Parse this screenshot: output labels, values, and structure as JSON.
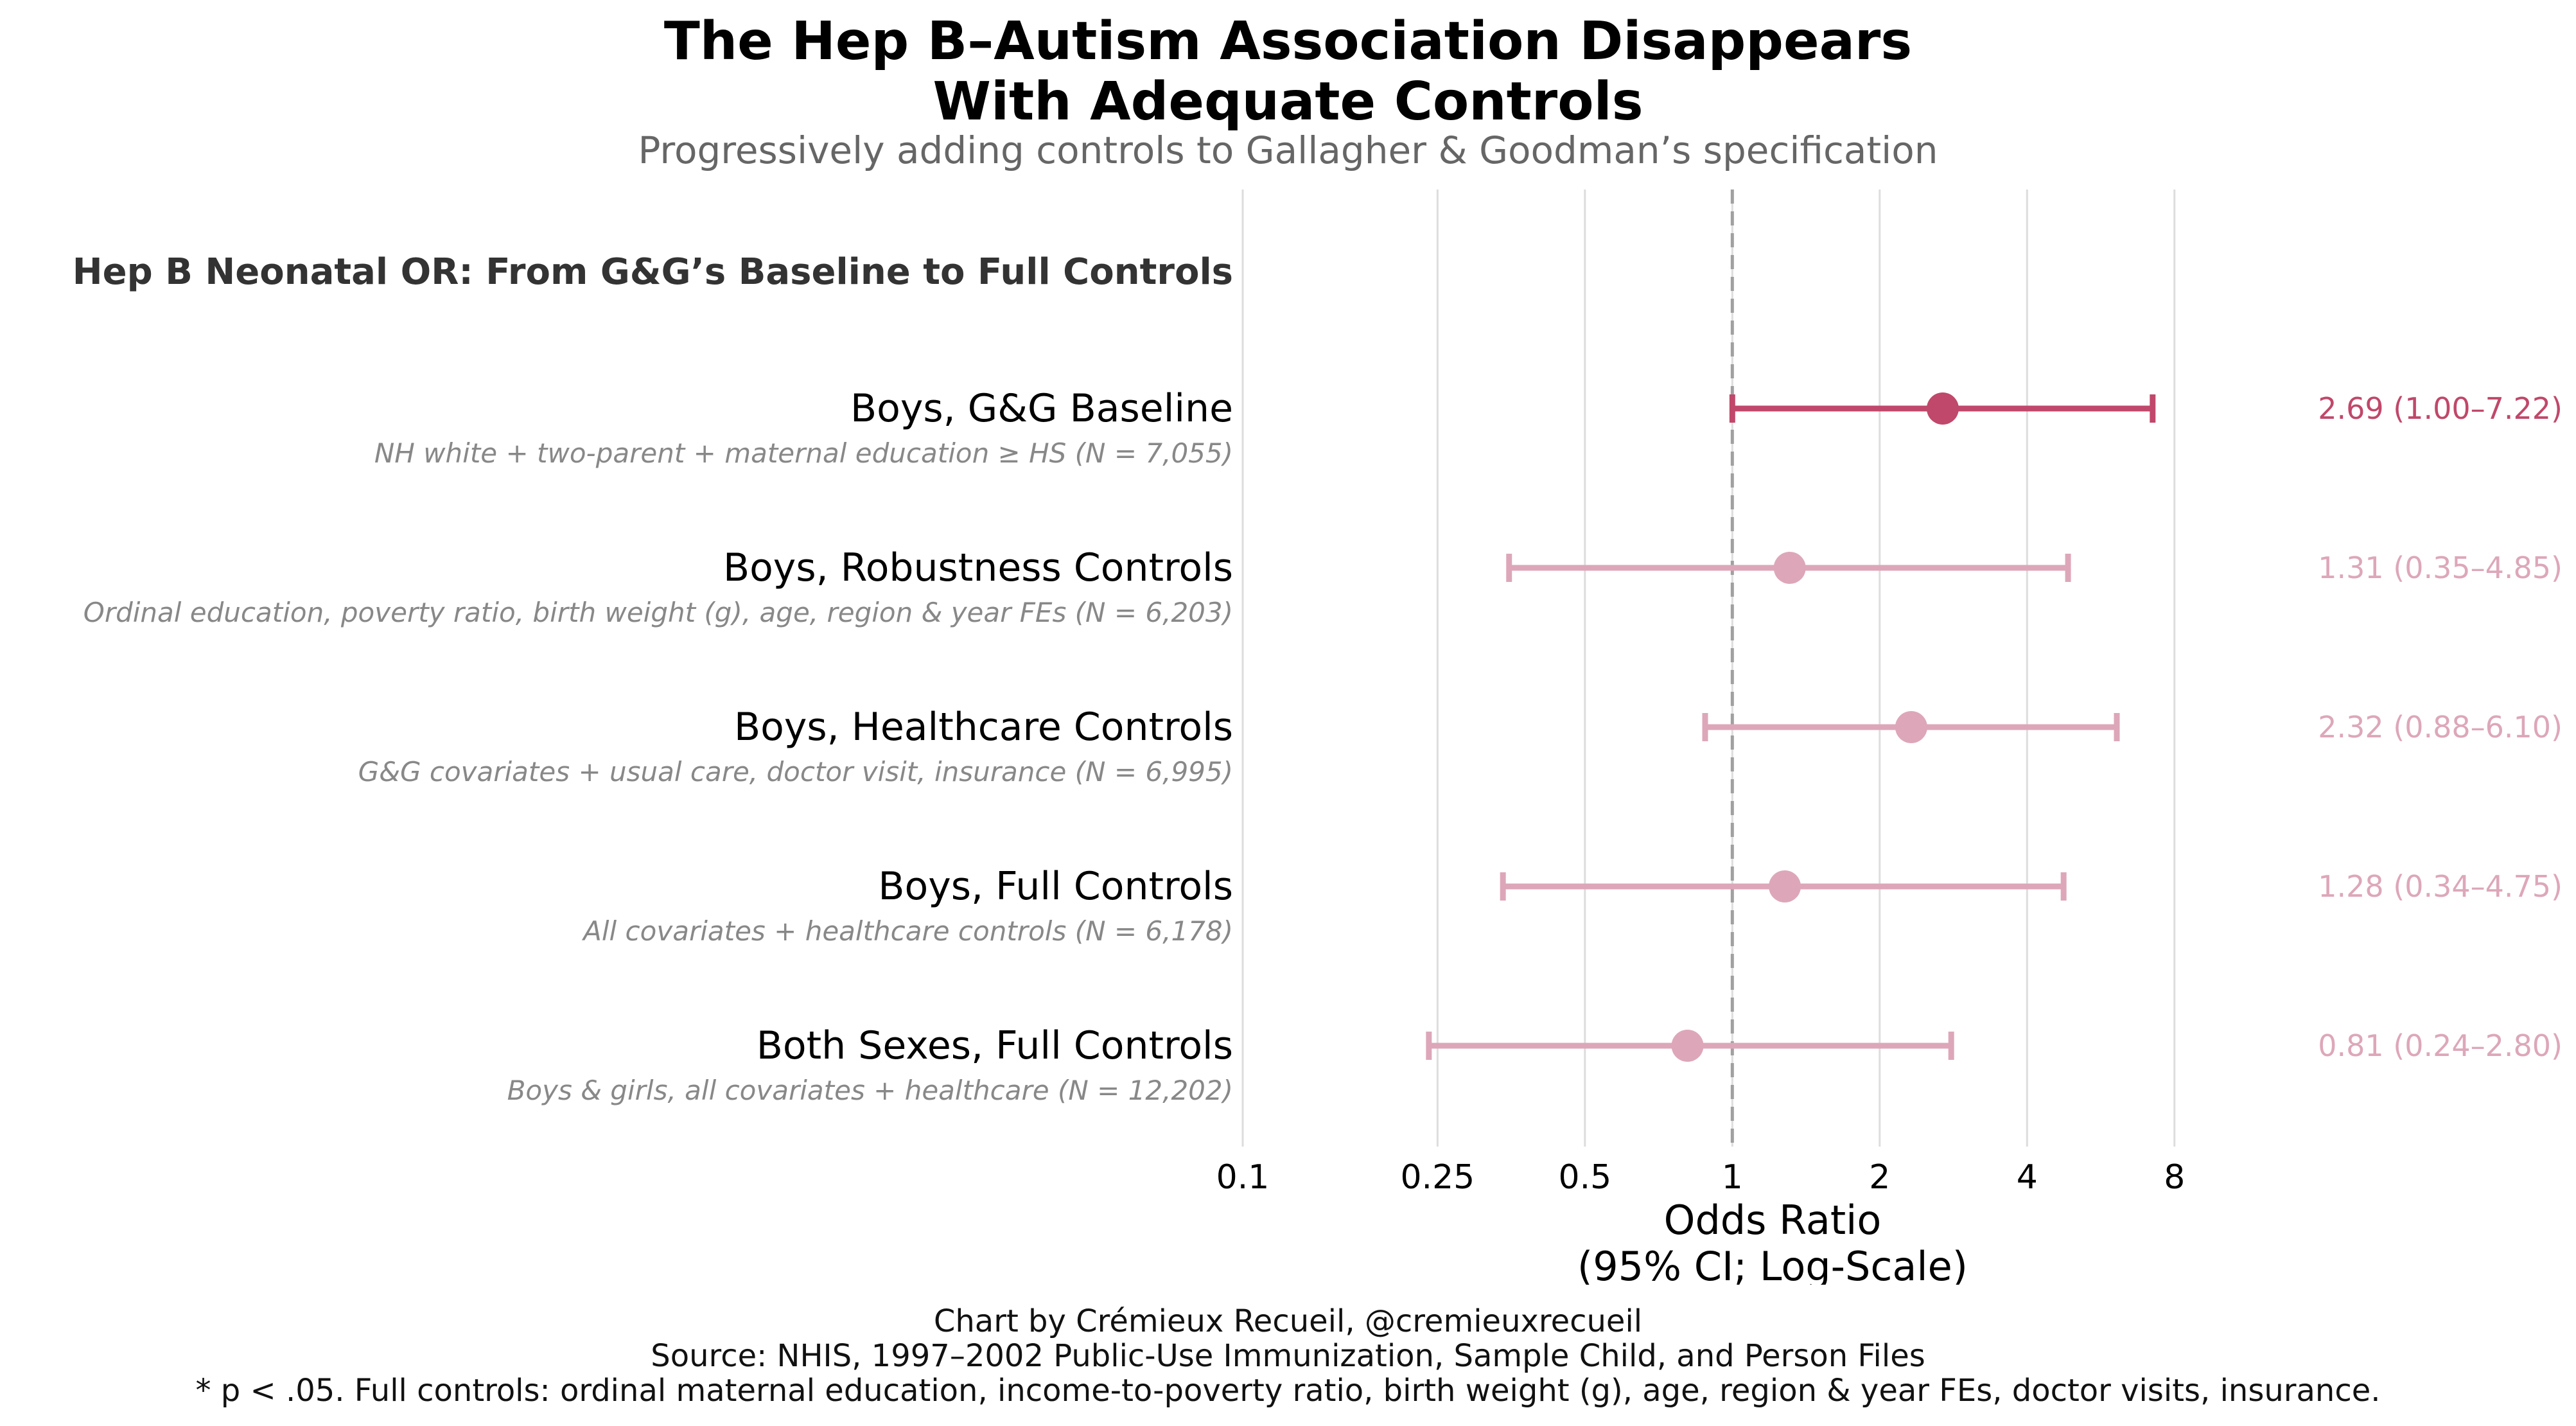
{
  "chart_data": {
    "type": "forest",
    "title_line1": "The Hep B–Autism Association Disappears",
    "title_line2": "With Adequate Controls",
    "subtitle": "Progressively adding controls to Gallagher & Goodman’s specification",
    "panel_title": "Hep B Neonatal OR: From G&G’s Baseline to Full Controls",
    "xlabel_line1": "Odds Ratio",
    "xlabel_line2": "(95% CI; Log-Scale)",
    "xscale": "log",
    "xlim": [
      0.1,
      12
    ],
    "reference_line": 1,
    "grid": true,
    "ticks": [
      {
        "value": 0.1,
        "label": "0.1"
      },
      {
        "value": 0.25,
        "label": "0.25"
      },
      {
        "value": 0.5,
        "label": "0.5"
      },
      {
        "value": 1,
        "label": "1"
      },
      {
        "value": 2,
        "label": "2"
      },
      {
        "value": 4,
        "label": "4"
      },
      {
        "value": 8,
        "label": "8"
      }
    ],
    "rows": [
      {
        "label": "Boys, G&G Baseline",
        "sublabel": "NH white + two-parent + maternal education ≥ HS (N = 7,055)",
        "or": 2.69,
        "lo": 1.0,
        "hi": 7.22,
        "annotation": "2.69 (1.00–7.22)",
        "highlight": true
      },
      {
        "label": "Boys, Robustness Controls",
        "sublabel": "Ordinal education, poverty ratio, birth weight (g), age, region & year FEs (N = 6,203)",
        "or": 1.31,
        "lo": 0.35,
        "hi": 4.85,
        "annotation": "1.31 (0.35–4.85)",
        "highlight": false
      },
      {
        "label": "Boys, Healthcare Controls",
        "sublabel": "G&G covariates + usual care, doctor visit, insurance (N = 6,995)",
        "or": 2.32,
        "lo": 0.88,
        "hi": 6.1,
        "annotation": "2.32 (0.88–6.10)",
        "highlight": false
      },
      {
        "label": "Boys, Full Controls",
        "sublabel": "All covariates + healthcare controls (N = 6,178)",
        "or": 1.28,
        "lo": 0.34,
        "hi": 4.75,
        "annotation": "1.28 (0.34–4.75)",
        "highlight": false
      },
      {
        "label": "Both Sexes, Full Controls",
        "sublabel": "Boys & girls, all covariates + healthcare (N = 12,202)",
        "or": 0.81,
        "lo": 0.24,
        "hi": 2.8,
        "annotation": "0.81 (0.24–2.80)",
        "highlight": false
      }
    ],
    "colors": {
      "highlight": "#c0486a",
      "muted": "#dda7b9",
      "grid": "#dddddd",
      "reference": "#a0a0a0",
      "sublabel": "#888888",
      "panel_title": "#333333"
    }
  },
  "footer": {
    "line1": "Chart by Crémieux Recueil, @cremieuxrecueil",
    "line2": "Source: NHIS, 1997–2002 Public-Use Immunization, Sample Child, and Person Files",
    "line3": "* p < .05. Full controls: ordinal maternal education, income-to-poverty ratio, birth weight (g), age, region & year FEs, doctor visits, insurance."
  }
}
